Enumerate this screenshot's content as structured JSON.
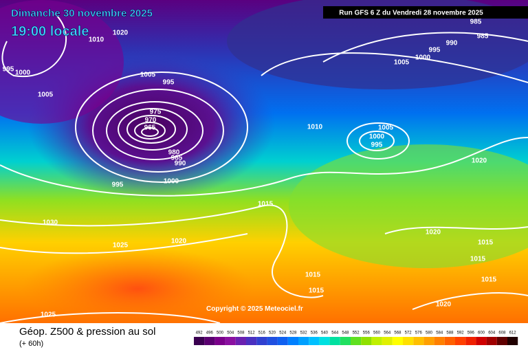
{
  "header": {
    "date": "Dimanche 30 novembre 2025",
    "time": "19:00 locale",
    "run": "Run GFS 6 Z du Vendredi 28 novembre 2025"
  },
  "copyright": "Copyright © 2025 Meteociel.fr",
  "footer": {
    "title": "Géop. Z500 & pression au sol",
    "lead": "(+ 60h)"
  },
  "isobar_labels": [
    1020,
    1010,
    995,
    1000,
    1005,
    1005,
    995,
    975,
    970,
    965,
    980,
    985,
    990,
    995,
    1000,
    1010,
    1005,
    1000,
    995,
    1015,
    1030,
    1025,
    1020,
    1020,
    1020,
    1015,
    1015,
    1015,
    1015,
    1015,
    1020,
    1025,
    1005,
    1000,
    995,
    990,
    985,
    985
  ],
  "legend": {
    "labels": [
      492,
      496,
      500,
      504,
      508,
      512,
      516,
      520,
      524,
      528,
      532,
      536,
      540,
      544,
      548,
      552,
      556,
      560,
      564,
      568,
      572,
      576,
      580,
      584,
      588,
      592,
      596,
      600,
      604,
      608,
      612
    ],
    "colors": [
      "#3a0050",
      "#5a0070",
      "#7a008a",
      "#8a10a0",
      "#6a20b0",
      "#4a30c0",
      "#3040d0",
      "#2050e0",
      "#1060f0",
      "#0080ff",
      "#00a0ff",
      "#00c0ff",
      "#00e0e0",
      "#00e0a0",
      "#20e060",
      "#60e020",
      "#90e000",
      "#c0f000",
      "#e0f000",
      "#ffff00",
      "#ffe000",
      "#ffc000",
      "#ffa000",
      "#ff8000",
      "#ff6000",
      "#ff4000",
      "#f02000",
      "#d00000",
      "#a00000",
      "#600000",
      "#200000"
    ]
  }
}
